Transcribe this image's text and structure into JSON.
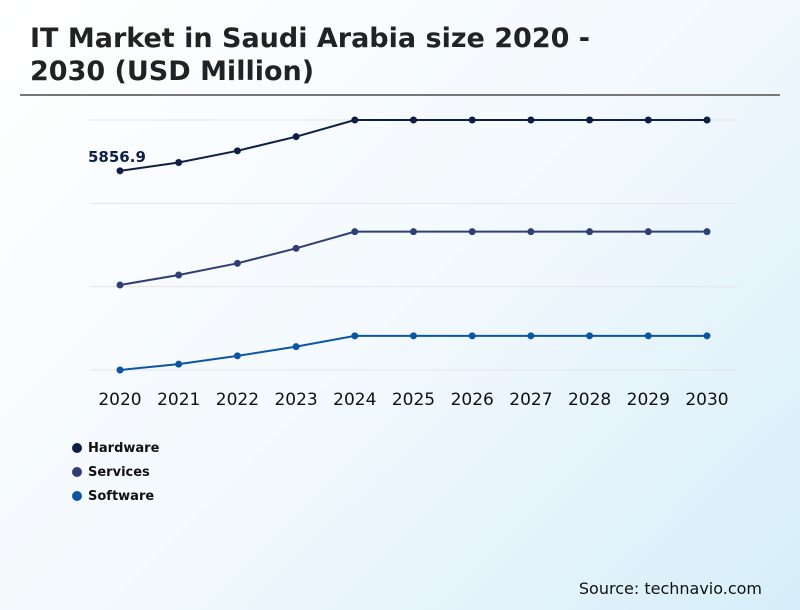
{
  "chart_data": {
    "type": "line",
    "title": "IT Market in Saudi Arabia size 2020 - 2030 (USD Million)",
    "categories": [
      "2020",
      "2021",
      "2022",
      "2023",
      "2024",
      "2025",
      "2026",
      "2027",
      "2028",
      "2029",
      "2030"
    ],
    "series": [
      {
        "name": "Hardware",
        "color": "#0d1f45",
        "values": [
          2.39,
          2.49,
          2.63,
          2.8,
          3.0,
          3.0,
          3.0,
          3.0,
          3.0,
          3.0,
          3.0
        ]
      },
      {
        "name": "Services",
        "color": "#2f3f74",
        "values": [
          1.02,
          1.14,
          1.28,
          1.46,
          1.66,
          1.66,
          1.66,
          1.66,
          1.66,
          1.66,
          1.66
        ]
      },
      {
        "name": "Software",
        "color": "#0b56a4",
        "values": [
          0,
          0.07,
          0.17,
          0.28,
          0.41,
          0.41,
          0.41,
          0.41,
          0.41,
          0.41,
          0.41
        ]
      }
    ],
    "annotation": "5856.9",
    "ylim": [
      0,
      3
    ],
    "grid": true,
    "legend": "bottom-left"
  },
  "source": "Source: technavio.com"
}
